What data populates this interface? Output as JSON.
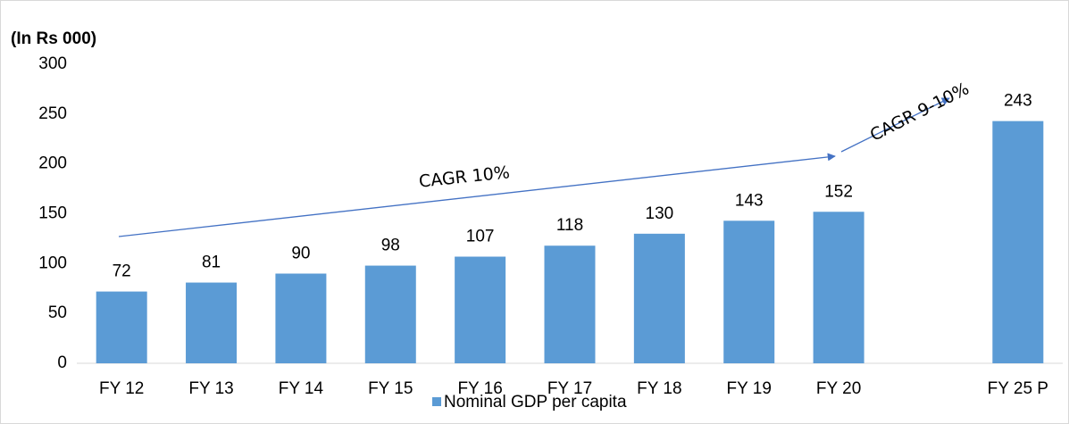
{
  "chart_data": {
    "type": "bar",
    "unit_label": "(In Rs 000)",
    "categories": [
      "FY 12",
      "FY 13",
      "FY 14",
      "FY 15",
      "FY 16",
      "FY 17",
      "FY 18",
      "FY 19",
      "FY 20",
      null,
      "FY 25 P"
    ],
    "series": [
      {
        "name": "Nominal GDP per capita",
        "color": "#5b9bd5",
        "values": [
          72,
          81,
          90,
          98,
          107,
          118,
          130,
          143,
          152,
          null,
          243
        ]
      }
    ],
    "ylim": [
      0,
      300
    ],
    "yticks": [
      0,
      50,
      100,
      150,
      200,
      250,
      300
    ],
    "annotations": [
      "CAGR 10%",
      "CAGR 9-10%"
    ],
    "legend": "bottom"
  }
}
